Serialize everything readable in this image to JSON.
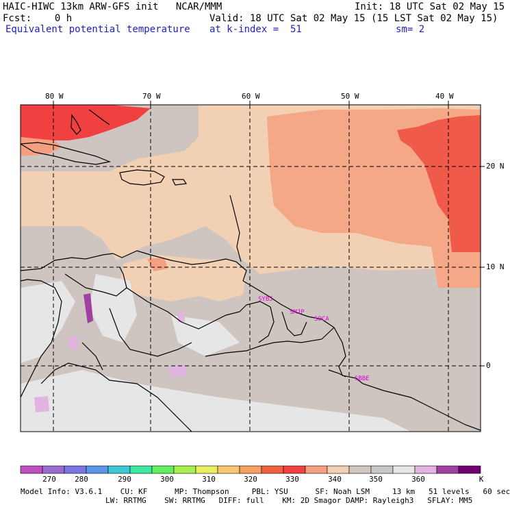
{
  "header": {
    "title": "HAIC-HIWC 13km ARW-GFS init   NCAR/MMM",
    "init": "Init: 18 UTC Sat 02 May 15",
    "fcst": "Fcst:    0 h",
    "valid": "Valid: 18 UTC Sat 02 May 15 (15 LST Sat 02 May 15)",
    "field": "Equivalent potential temperature",
    "level": "at k-index =  51",
    "smooth": "sm= 2"
  },
  "map": {
    "lon_labels": [
      "80 W",
      "70 W",
      "60 W",
      "50 W",
      "40 W"
    ],
    "lat_labels": [
      "20 N",
      "10 N",
      "0"
    ],
    "stations": [
      "SYBJ",
      "SMJP",
      "SOCA",
      "SBBE"
    ]
  },
  "colorbar": {
    "unit": "K",
    "tick_labels": [
      "270",
      "280",
      "290",
      "300",
      "310",
      "320",
      "330",
      "340",
      "350",
      "360"
    ],
    "colors": [
      "#c050c0",
      "#9a6ad2",
      "#7a74e4",
      "#5b94e8",
      "#3cc8d4",
      "#3ce8a0",
      "#60f060",
      "#a8f050",
      "#e8f060",
      "#f8c870",
      "#f8a060",
      "#f06040",
      "#f04040",
      "#f4a080",
      "#f2d0b4",
      "#d2c6c0",
      "#c8c8c8",
      "#e6e6e6",
      "#e2b4e2",
      "#a040a0",
      "#700070"
    ]
  },
  "footer": {
    "line1": "Model Info: V3.6.1    CU: KF      MP: Thompson     PBL: YSU      SF: Noah LSM     13 km   51 levels   60 sec",
    "line2": "LW: RRTMG    SW: RRTMG   DIFF: full    KM: 2D Smagor DAMP: Rayleigh3   SFLAY: MM5"
  }
}
